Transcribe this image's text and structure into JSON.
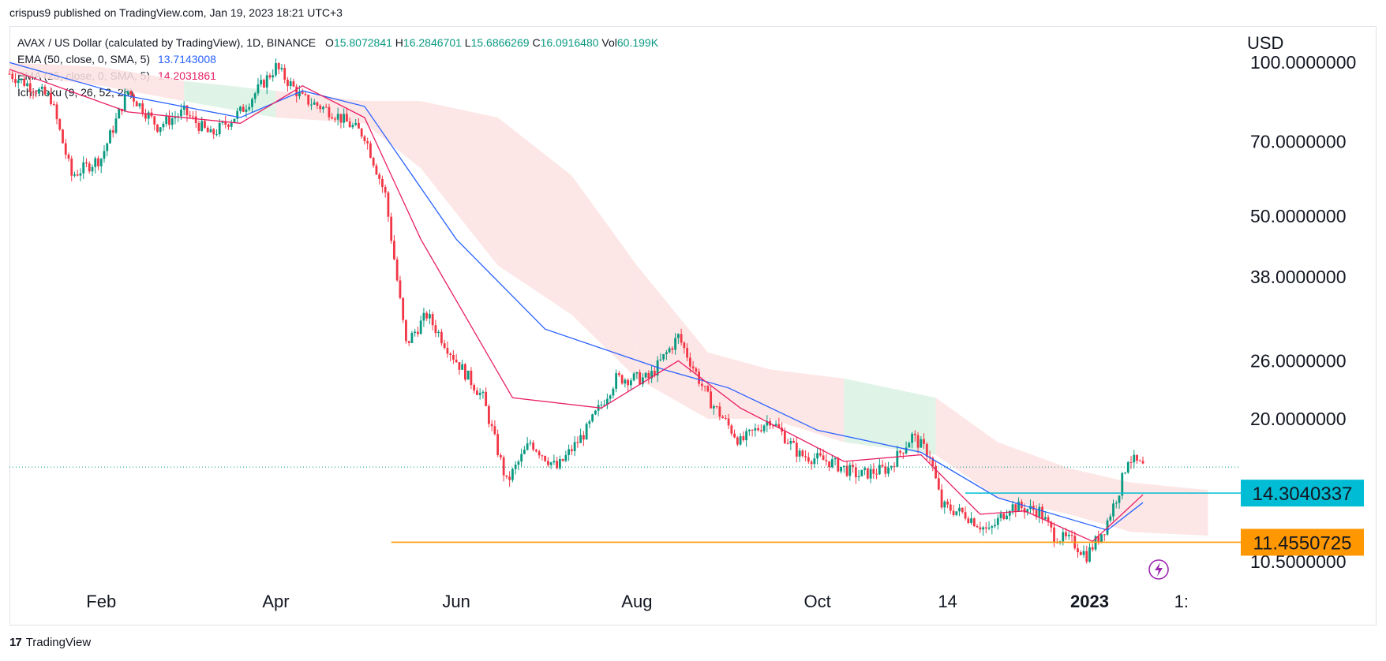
{
  "publisher": "crispus9 published on TradingView.com, Jan 19, 2023 18:21 UTC+3",
  "legend": {
    "symbol": "AVAX / US Dollar (calculated by TradingView), 1D, BINANCE",
    "o_label": "O",
    "o_value": "15.8072841",
    "h_label": "H",
    "h_value": "16.2846701",
    "l_label": "L",
    "l_value": "15.6866269",
    "c_label": "C",
    "c_value": "16.0916480",
    "vol_label": "Vol",
    "vol_value": "60.199K",
    "ema50_label": "EMA (50, close, 0, SMA, 5)",
    "ema50_value": "13.7143008",
    "ema25_label": "EMA (25, close, 0, SMA, 5)",
    "ema25_value": "14.2031861",
    "ichimoku_label": "Ichimoku (9, 26, 52, 26)"
  },
  "footer": {
    "brand": "TradingView",
    "logo": "17"
  },
  "chart_data": {
    "type": "candlestick",
    "currency_label": "USD",
    "y_scale": "log",
    "ylim": [
      9.5,
      115
    ],
    "price_ticks": [
      "100.0000000",
      "70.0000000",
      "50.0000000",
      "38.0000000",
      "26.0000000",
      "20.0000000",
      "10.5000000"
    ],
    "time_ticks": [
      "Feb",
      "Apr",
      "Jun",
      "Aug",
      "Oct",
      "14",
      "2023",
      "1:"
    ],
    "current_price": 16.09,
    "price_labels": [
      {
        "value": "14.3040337",
        "price": 14.3040337,
        "color": "#00bcd4"
      },
      {
        "value": "11.4550725",
        "price": 11.4550725,
        "color": "#ff9800"
      }
    ],
    "horizontal_lines": [
      {
        "price": 14.3040337,
        "color": "#00bcd4",
        "from_date": "2022-11-20"
      },
      {
        "price": 11.4550725,
        "color": "#ff9800",
        "from_date": "2022-05-10"
      }
    ],
    "colors": {
      "up": "#089981",
      "down": "#f23645",
      "ema50": "#2962ff",
      "ema25": "#e91e63",
      "cloud_bear": "#fde2e2",
      "cloud_bull": "#d9f2e3"
    },
    "close_path": [
      [
        "2022-01-01",
        95
      ],
      [
        "2022-01-08",
        90
      ],
      [
        "2022-01-15",
        85
      ],
      [
        "2022-01-22",
        60
      ],
      [
        "2022-02-01",
        65
      ],
      [
        "2022-02-10",
        88
      ],
      [
        "2022-02-20",
        75
      ],
      [
        "2022-03-01",
        80
      ],
      [
        "2022-03-10",
        72
      ],
      [
        "2022-03-20",
        80
      ],
      [
        "2022-04-01",
        98
      ],
      [
        "2022-04-10",
        85
      ],
      [
        "2022-04-20",
        80
      ],
      [
        "2022-05-01",
        72
      ],
      [
        "2022-05-08",
        55
      ],
      [
        "2022-05-15",
        28
      ],
      [
        "2022-05-22",
        32
      ],
      [
        "2022-06-01",
        26
      ],
      [
        "2022-06-10",
        22
      ],
      [
        "2022-06-18",
        15
      ],
      [
        "2022-06-26",
        18
      ],
      [
        "2022-07-05",
        16
      ],
      [
        "2022-07-15",
        19
      ],
      [
        "2022-07-25",
        24
      ],
      [
        "2022-08-05",
        24
      ],
      [
        "2022-08-15",
        29
      ],
      [
        "2022-08-25",
        22
      ],
      [
        "2022-09-05",
        18
      ],
      [
        "2022-09-15",
        20
      ],
      [
        "2022-09-25",
        17
      ],
      [
        "2022-10-05",
        16.5
      ],
      [
        "2022-10-15",
        15.5
      ],
      [
        "2022-10-25",
        16
      ],
      [
        "2022-11-02",
        18.5
      ],
      [
        "2022-11-08",
        17
      ],
      [
        "2022-11-12",
        13.5
      ],
      [
        "2022-11-20",
        13
      ],
      [
        "2022-11-28",
        12
      ],
      [
        "2022-12-05",
        13.5
      ],
      [
        "2022-12-15",
        13.2
      ],
      [
        "2022-12-20",
        11.8
      ],
      [
        "2022-12-26",
        11.5
      ],
      [
        "2022-12-31",
        10.8
      ],
      [
        "2023-01-06",
        12.2
      ],
      [
        "2023-01-11",
        14.5
      ],
      [
        "2023-01-14",
        16.8
      ],
      [
        "2023-01-19",
        16.09
      ]
    ],
    "ema50": [
      [
        "2022-01-01",
        100
      ],
      [
        "2022-02-10",
        86
      ],
      [
        "2022-03-20",
        78
      ],
      [
        "2022-04-10",
        88
      ],
      [
        "2022-05-01",
        82
      ],
      [
        "2022-06-01",
        45
      ],
      [
        "2022-07-01",
        30
      ],
      [
        "2022-08-10",
        25
      ],
      [
        "2022-09-01",
        23
      ],
      [
        "2022-10-01",
        19
      ],
      [
        "2022-11-05",
        17.2
      ],
      [
        "2022-12-01",
        14
      ],
      [
        "2023-01-07",
        12.1
      ],
      [
        "2023-01-19",
        13.7
      ]
    ],
    "ema25": [
      [
        "2022-01-01",
        97
      ],
      [
        "2022-02-10",
        80
      ],
      [
        "2022-03-20",
        76
      ],
      [
        "2022-04-10",
        90
      ],
      [
        "2022-05-01",
        78
      ],
      [
        "2022-05-20",
        45
      ],
      [
        "2022-06-20",
        22
      ],
      [
        "2022-07-20",
        21
      ],
      [
        "2022-08-15",
        26
      ],
      [
        "2022-09-05",
        21
      ],
      [
        "2022-10-10",
        16.5
      ],
      [
        "2022-11-05",
        17
      ],
      [
        "2022-11-25",
        13
      ],
      [
        "2022-12-10",
        13.2
      ],
      [
        "2023-01-02",
        11.5
      ],
      [
        "2023-01-19",
        14.2
      ]
    ],
    "cloud": [
      [
        "2022-01-01",
        100,
        95
      ],
      [
        "2022-02-01",
        98,
        90
      ],
      [
        "2022-03-01",
        92,
        84
      ],
      [
        "2022-04-01",
        88,
        78
      ],
      [
        "2022-05-01",
        84,
        76
      ],
      [
        "2022-05-20",
        84,
        62
      ],
      [
        "2022-06-15",
        78,
        40
      ],
      [
        "2022-07-10",
        60,
        32
      ],
      [
        "2022-08-01",
        40,
        24
      ],
      [
        "2022-08-25",
        27,
        20
      ],
      [
        "2022-09-15",
        25,
        20
      ],
      [
        "2022-10-10",
        24,
        18
      ],
      [
        "2022-11-10",
        22,
        17
      ],
      [
        "2022-12-01",
        18,
        14
      ],
      [
        "2022-12-25",
        16,
        13
      ],
      [
        "2023-01-15",
        15,
        12
      ],
      [
        "2023-02-10",
        14.5,
        11.8
      ]
    ]
  }
}
